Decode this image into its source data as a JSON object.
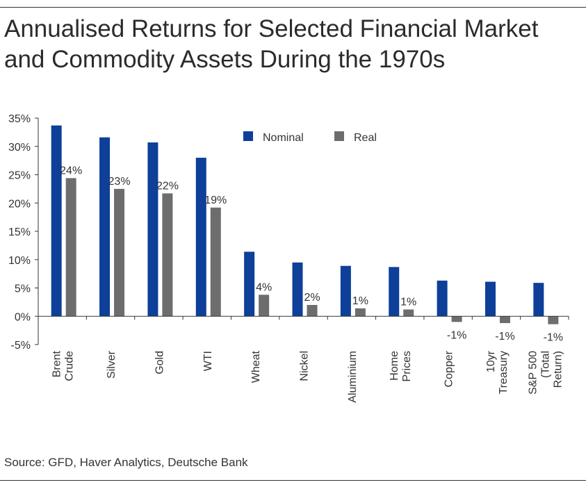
{
  "title_line1": "Annualised Returns for Selected Financial Market",
  "title_line2": "and Commodity Assets During the 1970s",
  "source": "Source: GFD, Haver Analytics, Deutsche Bank",
  "colors": {
    "nominal": "#0e3f99",
    "real": "#6d6d6d",
    "axis": "#333333"
  },
  "chart_data": {
    "type": "bar",
    "title": "Annualised Returns for Selected Financial Market and Commodity Assets During the 1970s",
    "xlabel": "",
    "ylabel": "",
    "ylim": [
      -5,
      35
    ],
    "yticks": [
      35,
      30,
      25,
      20,
      15,
      10,
      5,
      0,
      -5
    ],
    "ytick_labels": [
      "35%",
      "30%",
      "25%",
      "20%",
      "15%",
      "10%",
      "5%",
      "0%",
      "-5%"
    ],
    "grid": false,
    "legend_position": "top-right",
    "categories": [
      [
        "Brent",
        "Crude"
      ],
      [
        "Silver"
      ],
      [
        "Gold"
      ],
      [
        "WTI"
      ],
      [
        "Wheat"
      ],
      [
        "Nickel"
      ],
      [
        "Aluminium"
      ],
      [
        "Home",
        "Prices"
      ],
      [
        "Copper"
      ],
      [
        "10yr",
        "Treasury"
      ],
      [
        "S&P 500",
        "(Total",
        "Return)"
      ]
    ],
    "series": [
      {
        "name": "Nominal",
        "values": [
          33.7,
          31.6,
          30.7,
          28.0,
          11.4,
          9.5,
          8.9,
          8.7,
          6.3,
          6.1,
          5.9
        ]
      },
      {
        "name": "Real",
        "values": [
          24.4,
          22.5,
          21.7,
          19.2,
          3.8,
          2.0,
          1.4,
          1.2,
          -1.0,
          -1.2,
          -1.4
        ]
      }
    ],
    "data_labels": {
      "series": "Real",
      "labels": [
        "24%",
        "23%",
        "22%",
        "19%",
        "4%",
        "2%",
        "1%",
        "1%",
        "-1%",
        "-1%",
        "-1%"
      ]
    }
  }
}
